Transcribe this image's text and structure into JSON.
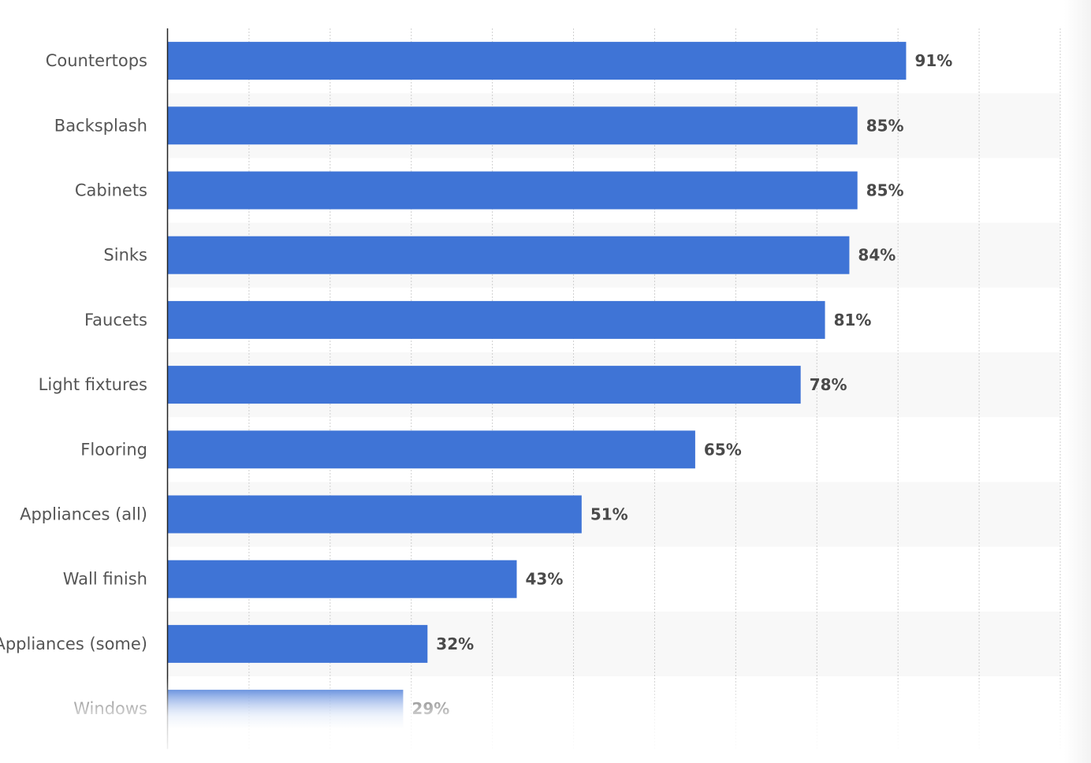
{
  "chart_data": {
    "type": "bar",
    "orientation": "horizontal",
    "categories": [
      "Countertops",
      "Backsplash",
      "Cabinets",
      "Sinks",
      "Faucets",
      "Light fixtures",
      "Flooring",
      "Appliances (all)",
      "Wall finish",
      "Appliances (some)",
      "Windows"
    ],
    "values": [
      91,
      85,
      85,
      84,
      81,
      78,
      65,
      51,
      43,
      32,
      29
    ],
    "value_labels": [
      "91%",
      "85%",
      "85%",
      "84%",
      "81%",
      "78%",
      "65%",
      "51%",
      "43%",
      "32%",
      "29%"
    ],
    "xlim": [
      0,
      110
    ],
    "grid": true,
    "bar_color": "#3f74d6",
    "band_color": "#f8f8f8"
  }
}
